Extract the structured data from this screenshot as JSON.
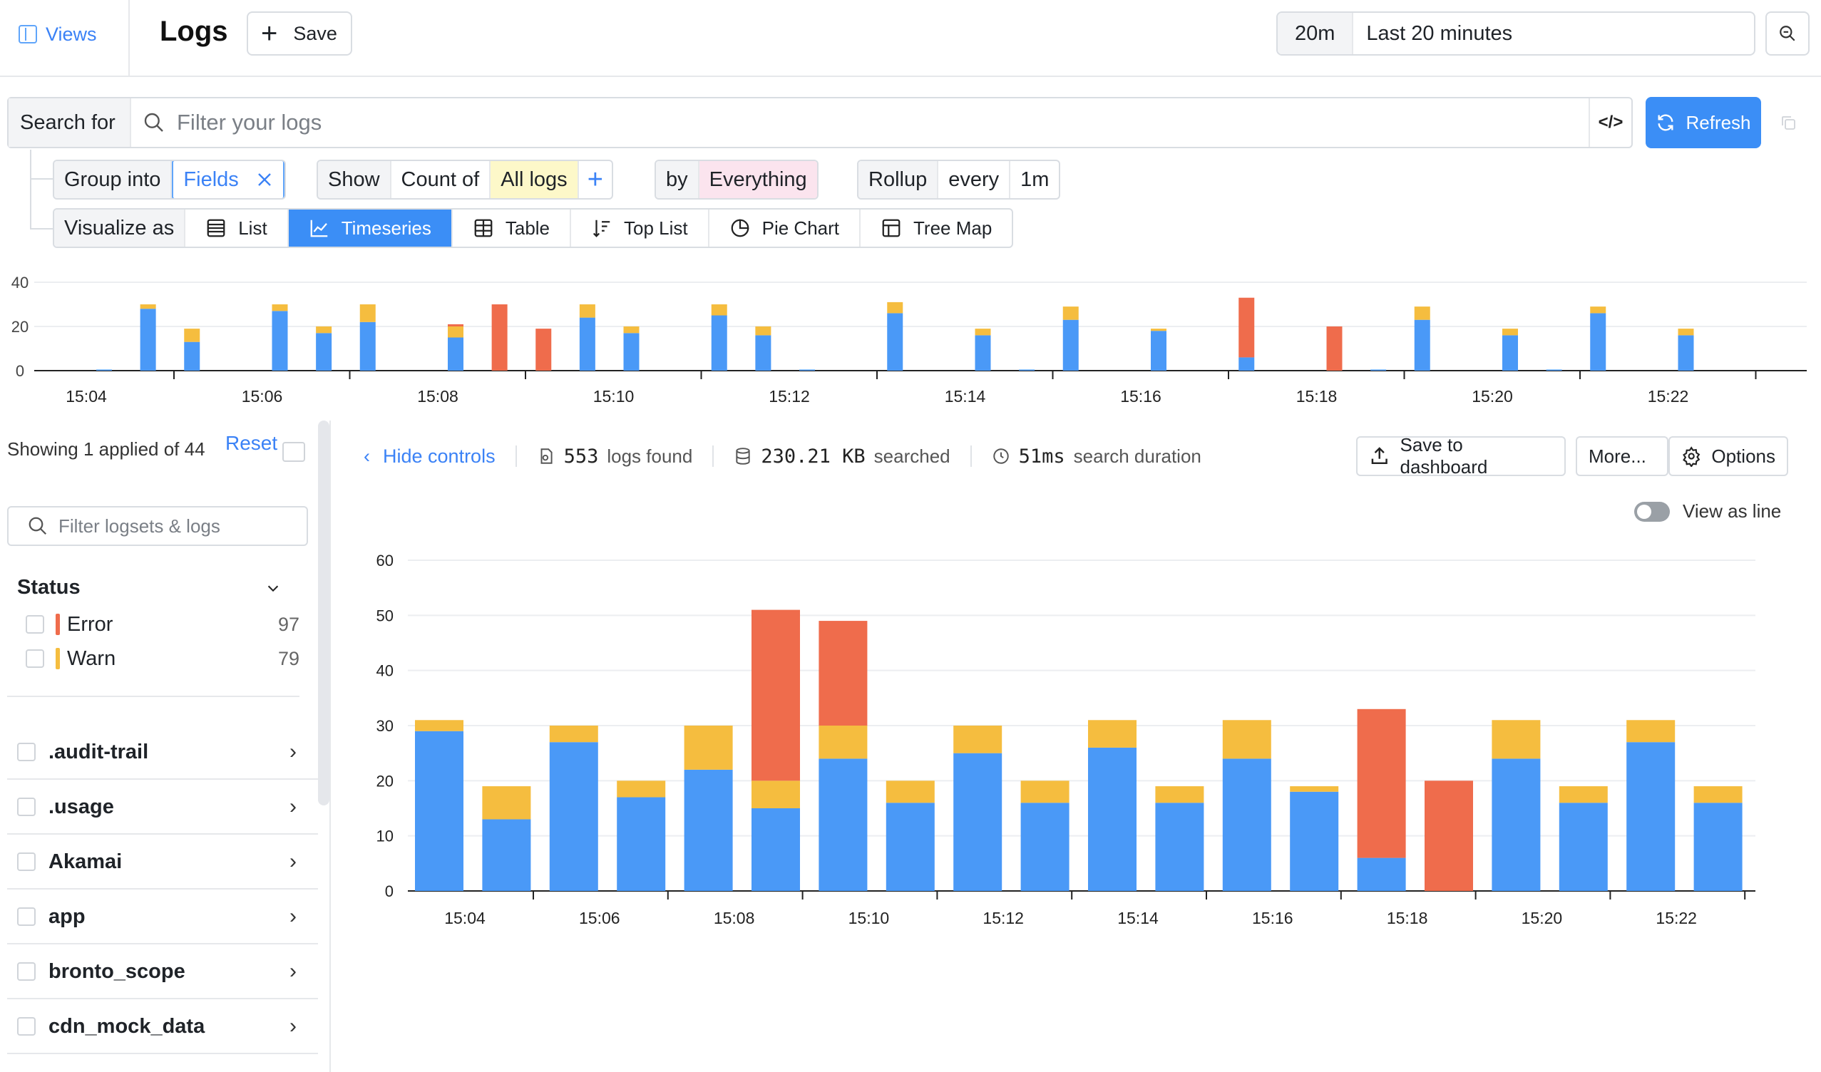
{
  "header": {
    "views_label": "Views",
    "title": "Logs",
    "save_label": "Save",
    "time_short": "20m",
    "time_long": "Last 20 minutes"
  },
  "search": {
    "label": "Search for",
    "placeholder": "Filter your logs",
    "refresh_label": "Refresh"
  },
  "query": {
    "group_label": "Group into",
    "group_value": "Fields",
    "show_label": "Show",
    "count_label": "Count of",
    "count_value": "All logs",
    "by_label": "by",
    "by_value": "Everything",
    "rollup_label": "Rollup",
    "every_label": "every",
    "every_value": "1m"
  },
  "visualize": {
    "label": "Visualize as",
    "options": [
      "List",
      "Timeseries",
      "Table",
      "Top List",
      "Pie Chart",
      "Tree Map"
    ],
    "active": "Timeseries"
  },
  "sidebar": {
    "showing_text": "Showing 1 applied of 44",
    "reset_label": "Reset",
    "filter_placeholder": "Filter logsets & logs",
    "status_title": "Status",
    "statuses": [
      {
        "label": "Error",
        "count": "97",
        "color": "#ef6c4c"
      },
      {
        "label": "Warn",
        "count": "79",
        "color": "#f5bd3f"
      }
    ],
    "items": [
      ".audit-trail",
      ".usage",
      "Akamai",
      "app",
      "bronto_scope",
      "cdn_mock_data"
    ]
  },
  "info": {
    "hide_controls": "Hide controls",
    "logs_count": "553",
    "logs_label": "logs found",
    "size": "230.21 KB",
    "size_label": "searched",
    "duration": "51ms",
    "duration_label": "search duration",
    "save_dashboard": "Save to dashboard",
    "more": "More...",
    "options": "Options",
    "view_as_line": "View as line"
  },
  "colors": {
    "info": "#4a99f7",
    "warn": "#f5bd3f",
    "error": "#ef6c4c",
    "accent": "#3b8ef6"
  },
  "chart_data": [
    {
      "type": "bar",
      "stacked": true,
      "name": "overview",
      "ylim": [
        0,
        40
      ],
      "yticks": [
        0,
        20,
        40
      ],
      "x_tick_labels": [
        "15:04",
        "15:06",
        "15:08",
        "15:10",
        "15:12",
        "15:14",
        "15:16",
        "15:18",
        "15:20",
        "15:22"
      ],
      "x_minutes": [
        0,
        0.5,
        1,
        2,
        2.5,
        3,
        4,
        4.5,
        5,
        5.5,
        6,
        7,
        7.5,
        8,
        9,
        10,
        10.5,
        11,
        12,
        12.5,
        13,
        14,
        14.5,
        15,
        16,
        16.5,
        17,
        18,
        18.5,
        19
      ],
      "series": [
        {
          "name": "info",
          "values": [
            0.5,
            28,
            13,
            27,
            17,
            22,
            15,
            0,
            0,
            24,
            17,
            25,
            16,
            0.5,
            26,
            16,
            0.5,
            23,
            18,
            0,
            6,
            0,
            0.5,
            23,
            16,
            0.5,
            26,
            16,
            0,
            0
          ]
        },
        {
          "name": "warn",
          "values": [
            0,
            2,
            6,
            3,
            3,
            8,
            5,
            0,
            0,
            6,
            3,
            5,
            4,
            0,
            5,
            3,
            0,
            6,
            1,
            0,
            0,
            0,
            0,
            6,
            3,
            0,
            3,
            3,
            0,
            0
          ]
        },
        {
          "name": "error",
          "values": [
            0,
            0,
            0,
            0,
            0,
            0,
            1,
            30,
            19,
            0,
            0,
            0,
            0,
            0,
            0,
            0,
            0,
            0,
            0,
            0,
            27,
            20,
            0,
            0,
            0,
            0,
            0,
            0,
            0,
            0
          ]
        }
      ]
    },
    {
      "type": "bar",
      "stacked": true,
      "name": "main",
      "ylim": [
        0,
        60
      ],
      "yticks": [
        0,
        10,
        20,
        30,
        40,
        50,
        60
      ],
      "x_tick_labels": [
        "15:04",
        "15:06",
        "15:08",
        "15:10",
        "15:12",
        "15:14",
        "15:16",
        "15:18",
        "15:20",
        "15:22"
      ],
      "series": [
        {
          "name": "info",
          "values": [
            29,
            13,
            27,
            17,
            22,
            15,
            24,
            16,
            25,
            16,
            26,
            16,
            24,
            18,
            6,
            0,
            24,
            16,
            27,
            16
          ]
        },
        {
          "name": "warn",
          "values": [
            2,
            6,
            3,
            3,
            8,
            5,
            6,
            4,
            5,
            4,
            5,
            3,
            7,
            1,
            0,
            0,
            7,
            3,
            4,
            3
          ]
        },
        {
          "name": "error",
          "values": [
            0,
            0,
            0,
            0,
            0,
            31,
            19,
            0,
            0,
            0,
            0,
            0,
            0,
            0,
            27,
            20,
            0,
            0,
            0,
            0
          ]
        }
      ]
    }
  ]
}
